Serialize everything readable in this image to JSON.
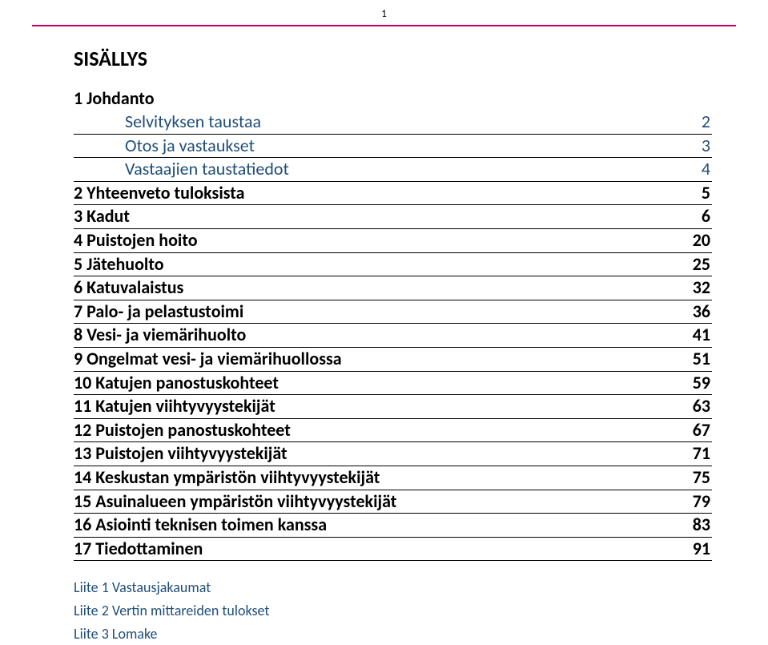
{
  "page_number": "1",
  "hr_color": "#c30068",
  "sub_color": "#1f4e79",
  "title": "SISÄLLYS",
  "toc": [
    {
      "label": "1 Johdanto",
      "page": "",
      "style": "head"
    },
    {
      "label": "Selvityksen taustaa",
      "page": "2",
      "style": "sub"
    },
    {
      "label": "Otos ja vastaukset",
      "page": "3",
      "style": "sub"
    },
    {
      "label": "Vastaajien taustatiedot",
      "page": "4",
      "style": "sub"
    },
    {
      "label": "2 Yhteenveto tuloksista",
      "page": "5",
      "style": "bold"
    },
    {
      "label": "3 Kadut",
      "page": "6",
      "style": "bold"
    },
    {
      "label": "4 Puistojen hoito",
      "page": "20",
      "style": "bold"
    },
    {
      "label": "5 Jätehuolto",
      "page": "25",
      "style": "bold"
    },
    {
      "label": "6 Katuvalaistus",
      "page": "32",
      "style": "bold"
    },
    {
      "label": "7 Palo- ja pelastustoimi",
      "page": "36",
      "style": "bold"
    },
    {
      "label": "8 Vesi- ja viemärihuolto",
      "page": "41",
      "style": "bold"
    },
    {
      "label": "9 Ongelmat vesi- ja viemärihuollossa",
      "page": "51",
      "style": "bold"
    },
    {
      "label": "10 Katujen panostuskohteet",
      "page": "59",
      "style": "bold"
    },
    {
      "label": "11 Katujen viihtyvyystekijät",
      "page": "63",
      "style": "bold"
    },
    {
      "label": "12 Puistojen panostuskohteet",
      "page": "67",
      "style": "bold"
    },
    {
      "label": "13 Puistojen viihtyvyystekijät",
      "page": "71",
      "style": "bold"
    },
    {
      "label": "14 Keskustan ympäristön viihtyvyystekijät",
      "page": "75",
      "style": "bold"
    },
    {
      "label": "15 Asuinalueen ympäristön viihtyvyystekijät",
      "page": "79",
      "style": "bold"
    },
    {
      "label": "16 Asiointi teknisen toimen kanssa",
      "page": "83",
      "style": "bold"
    },
    {
      "label": "17 Tiedottaminen",
      "page": "91",
      "style": "bold"
    }
  ],
  "appendix": [
    "Liite 1 Vastausjakaumat",
    "Liite 2 Vertin mittareiden tulokset",
    "Liite 3 Lomake"
  ]
}
